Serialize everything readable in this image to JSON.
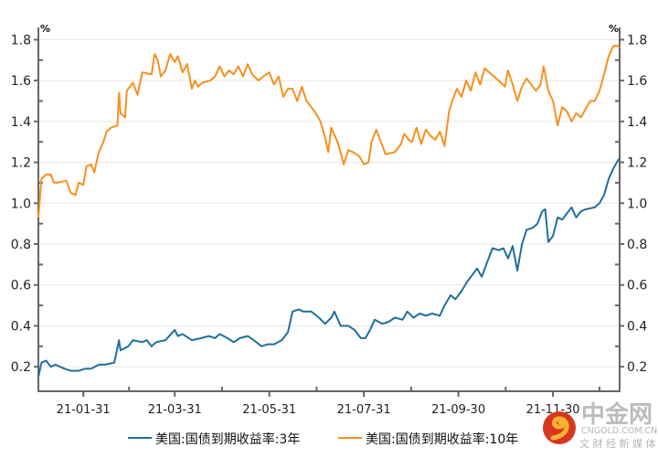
{
  "chart_data": {
    "type": "line",
    "title": "",
    "xlabel": "",
    "ylabel": "%",
    "ylabel_right": "%",
    "ylim": [
      0.08,
      1.86
    ],
    "xlim": [
      1,
      376
    ],
    "x_unit": "days since 2021-01-01",
    "grid": true,
    "legend_position": "bottom",
    "y_ticks": [
      0.2,
      0.4,
      0.6,
      0.8,
      1.0,
      1.2,
      1.4,
      1.6,
      1.8
    ],
    "y_tick_labels": [
      "0.2",
      "0.4",
      "0.6",
      "0.8",
      "1.0",
      "1.2",
      "1.4",
      "1.6",
      "1.8"
    ],
    "x_ticks": [
      30,
      89,
      150,
      211,
      272,
      333
    ],
    "x_tick_labels": [
      "21-01-31",
      "21-03-31",
      "21-05-31",
      "21-07-31",
      "21-09-30",
      "21-11-30"
    ],
    "series": [
      {
        "name": "美国:国债到期收益率:3年",
        "color": "#1f6f9e",
        "points": [
          [
            1,
            0.15
          ],
          [
            3,
            0.22
          ],
          [
            6,
            0.23
          ],
          [
            9,
            0.2
          ],
          [
            12,
            0.21
          ],
          [
            18,
            0.19
          ],
          [
            22,
            0.18
          ],
          [
            27,
            0.18
          ],
          [
            31,
            0.19
          ],
          [
            35,
            0.19
          ],
          [
            40,
            0.21
          ],
          [
            44,
            0.21
          ],
          [
            50,
            0.22
          ],
          [
            53,
            0.33
          ],
          [
            54,
            0.28
          ],
          [
            59,
            0.3
          ],
          [
            62,
            0.33
          ],
          [
            68,
            0.32
          ],
          [
            71,
            0.33
          ],
          [
            74,
            0.3
          ],
          [
            77,
            0.32
          ],
          [
            83,
            0.33
          ],
          [
            89,
            0.38
          ],
          [
            91,
            0.35
          ],
          [
            94,
            0.36
          ],
          [
            100,
            0.33
          ],
          [
            106,
            0.34
          ],
          [
            111,
            0.35
          ],
          [
            115,
            0.34
          ],
          [
            118,
            0.36
          ],
          [
            123,
            0.34
          ],
          [
            127,
            0.32
          ],
          [
            131,
            0.34
          ],
          [
            136,
            0.35
          ],
          [
            140,
            0.33
          ],
          [
            145,
            0.3
          ],
          [
            149,
            0.31
          ],
          [
            153,
            0.31
          ],
          [
            158,
            0.33
          ],
          [
            162,
            0.37
          ],
          [
            165,
            0.47
          ],
          [
            169,
            0.48
          ],
          [
            172,
            0.47
          ],
          [
            177,
            0.47
          ],
          [
            182,
            0.44
          ],
          [
            186,
            0.41
          ],
          [
            190,
            0.44
          ],
          [
            192,
            0.47
          ],
          [
            196,
            0.4
          ],
          [
            201,
            0.4
          ],
          [
            205,
            0.38
          ],
          [
            209,
            0.34
          ],
          [
            212,
            0.34
          ],
          [
            215,
            0.38
          ],
          [
            218,
            0.43
          ],
          [
            223,
            0.41
          ],
          [
            227,
            0.42
          ],
          [
            231,
            0.44
          ],
          [
            236,
            0.43
          ],
          [
            239,
            0.47
          ],
          [
            243,
            0.44
          ],
          [
            247,
            0.46
          ],
          [
            251,
            0.45
          ],
          [
            255,
            0.46
          ],
          [
            260,
            0.45
          ],
          [
            263,
            0.5
          ],
          [
            267,
            0.55
          ],
          [
            270,
            0.53
          ],
          [
            274,
            0.57
          ],
          [
            278,
            0.62
          ],
          [
            282,
            0.66
          ],
          [
            284,
            0.68
          ],
          [
            287,
            0.64
          ],
          [
            290,
            0.7
          ],
          [
            294,
            0.78
          ],
          [
            298,
            0.77
          ],
          [
            301,
            0.78
          ],
          [
            304,
            0.73
          ],
          [
            307,
            0.79
          ],
          [
            310,
            0.67
          ],
          [
            313,
            0.8
          ],
          [
            316,
            0.87
          ],
          [
            320,
            0.88
          ],
          [
            323,
            0.9
          ],
          [
            326,
            0.96
          ],
          [
            328,
            0.97
          ],
          [
            330,
            0.81
          ],
          [
            333,
            0.84
          ],
          [
            336,
            0.93
          ],
          [
            339,
            0.92
          ],
          [
            342,
            0.95
          ],
          [
            345,
            0.98
          ],
          [
            348,
            0.93
          ],
          [
            351,
            0.96
          ],
          [
            354,
            0.97
          ],
          [
            360,
            0.98
          ],
          [
            363,
            1.0
          ],
          [
            366,
            1.04
          ],
          [
            369,
            1.12
          ],
          [
            372,
            1.17
          ],
          [
            375,
            1.21
          ],
          [
            376,
            1.22
          ]
        ]
      },
      {
        "name": "美国:国债到期收益率:10年",
        "color": "#f7901e",
        "points": [
          [
            1,
            0.93
          ],
          [
            3,
            1.12
          ],
          [
            6,
            1.14
          ],
          [
            9,
            1.14
          ],
          [
            11,
            1.1
          ],
          [
            13,
            1.1
          ],
          [
            19,
            1.11
          ],
          [
            22,
            1.05
          ],
          [
            25,
            1.04
          ],
          [
            27,
            1.1
          ],
          [
            30,
            1.09
          ],
          [
            32,
            1.18
          ],
          [
            35,
            1.19
          ],
          [
            37,
            1.15
          ],
          [
            40,
            1.25
          ],
          [
            43,
            1.3
          ],
          [
            45,
            1.35
          ],
          [
            48,
            1.37
          ],
          [
            52,
            1.38
          ],
          [
            53,
            1.54
          ],
          [
            54,
            1.44
          ],
          [
            57,
            1.42
          ],
          [
            58,
            1.55
          ],
          [
            62,
            1.59
          ],
          [
            65,
            1.53
          ],
          [
            68,
            1.64
          ],
          [
            74,
            1.63
          ],
          [
            76,
            1.73
          ],
          [
            78,
            1.7
          ],
          [
            80,
            1.62
          ],
          [
            83,
            1.65
          ],
          [
            86,
            1.73
          ],
          [
            89,
            1.69
          ],
          [
            91,
            1.72
          ],
          [
            94,
            1.64
          ],
          [
            97,
            1.68
          ],
          [
            100,
            1.56
          ],
          [
            102,
            1.6
          ],
          [
            104,
            1.57
          ],
          [
            107,
            1.59
          ],
          [
            112,
            1.6
          ],
          [
            115,
            1.62
          ],
          [
            118,
            1.67
          ],
          [
            121,
            1.62
          ],
          [
            124,
            1.65
          ],
          [
            127,
            1.63
          ],
          [
            130,
            1.67
          ],
          [
            133,
            1.62
          ],
          [
            136,
            1.68
          ],
          [
            139,
            1.63
          ],
          [
            143,
            1.6
          ],
          [
            146,
            1.62
          ],
          [
            150,
            1.64
          ],
          [
            153,
            1.58
          ],
          [
            156,
            1.62
          ],
          [
            159,
            1.52
          ],
          [
            162,
            1.56
          ],
          [
            165,
            1.56
          ],
          [
            168,
            1.5
          ],
          [
            171,
            1.57
          ],
          [
            174,
            1.5
          ],
          [
            177,
            1.47
          ],
          [
            180,
            1.44
          ],
          [
            183,
            1.4
          ],
          [
            186,
            1.32
          ],
          [
            188,
            1.25
          ],
          [
            190,
            1.37
          ],
          [
            194,
            1.3
          ],
          [
            196,
            1.25
          ],
          [
            198,
            1.19
          ],
          [
            201,
            1.26
          ],
          [
            204,
            1.25
          ],
          [
            208,
            1.23
          ],
          [
            211,
            1.19
          ],
          [
            214,
            1.2
          ],
          [
            216,
            1.3
          ],
          [
            219,
            1.36
          ],
          [
            223,
            1.28
          ],
          [
            225,
            1.24
          ],
          [
            231,
            1.25
          ],
          [
            235,
            1.29
          ],
          [
            237,
            1.34
          ],
          [
            240,
            1.31
          ],
          [
            242,
            1.3
          ],
          [
            245,
            1.37
          ],
          [
            248,
            1.29
          ],
          [
            251,
            1.36
          ],
          [
            254,
            1.33
          ],
          [
            257,
            1.31
          ],
          [
            260,
            1.35
          ],
          [
            263,
            1.28
          ],
          [
            266,
            1.45
          ],
          [
            268,
            1.5
          ],
          [
            271,
            1.56
          ],
          [
            274,
            1.52
          ],
          [
            277,
            1.6
          ],
          [
            280,
            1.55
          ],
          [
            283,
            1.64
          ],
          [
            286,
            1.58
          ],
          [
            289,
            1.66
          ],
          [
            292,
            1.64
          ],
          [
            295,
            1.62
          ],
          [
            298,
            1.6
          ],
          [
            302,
            1.57
          ],
          [
            304,
            1.65
          ],
          [
            307,
            1.58
          ],
          [
            310,
            1.5
          ],
          [
            313,
            1.57
          ],
          [
            316,
            1.61
          ],
          [
            319,
            1.58
          ],
          [
            322,
            1.55
          ],
          [
            325,
            1.58
          ],
          [
            327,
            1.67
          ],
          [
            330,
            1.55
          ],
          [
            333,
            1.5
          ],
          [
            336,
            1.38
          ],
          [
            339,
            1.47
          ],
          [
            342,
            1.45
          ],
          [
            345,
            1.4
          ],
          [
            348,
            1.44
          ],
          [
            351,
            1.42
          ],
          [
            354,
            1.46
          ],
          [
            357,
            1.5
          ],
          [
            360,
            1.5
          ],
          [
            363,
            1.55
          ],
          [
            366,
            1.63
          ],
          [
            369,
            1.72
          ],
          [
            372,
            1.77
          ],
          [
            375,
            1.77
          ],
          [
            376,
            1.76
          ]
        ]
      }
    ]
  },
  "watermark": {
    "brand": "中金网",
    "domain": "CNGOLD.COM.CN",
    "slogan": "文 财 经 新 媒 体"
  }
}
